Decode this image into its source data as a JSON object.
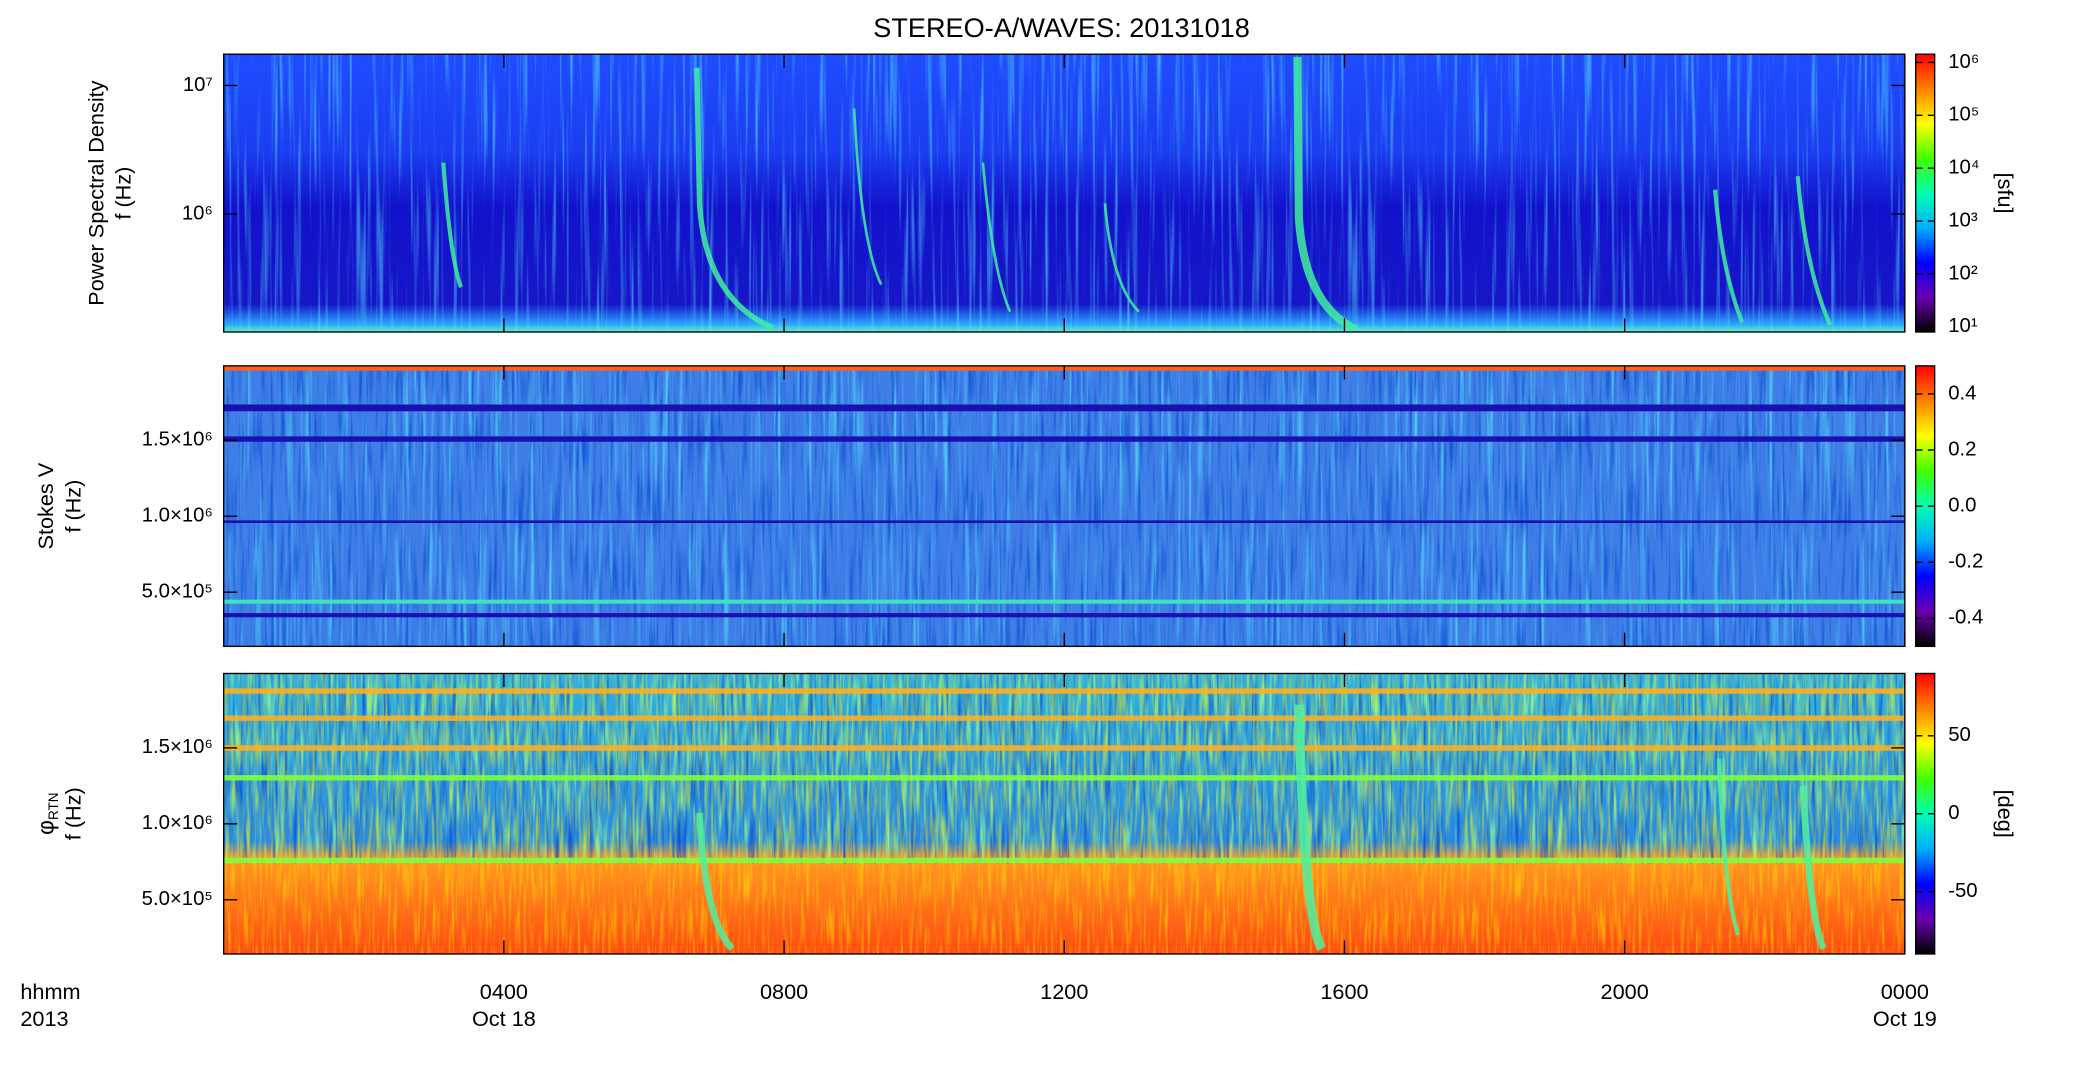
{
  "chart_data": [
    {
      "type": "spectrogram",
      "title": "STEREO-A/WAVES: 20131018",
      "ylabel": [
        "Power Spectral Density",
        "f (Hz)"
      ],
      "ylog": true,
      "ylim": [
        121000,
        17500000
      ],
      "yticks": [
        {
          "value": 1000000,
          "label": "10⁶"
        },
        {
          "value": 10000000,
          "label": "10⁷"
        }
      ],
      "colorbar_label": "[sfu]",
      "clog": true,
      "clim": [
        8,
        1430000
      ],
      "cticks": [
        {
          "value": 10,
          "label": "10¹"
        },
        {
          "value": 100,
          "label": "10²"
        },
        {
          "value": 1000,
          "label": "10³"
        },
        {
          "value": 10000,
          "label": "10⁴"
        },
        {
          "value": 100000,
          "label": "10⁵"
        },
        {
          "value": 1000000,
          "label": "10⁶"
        }
      ],
      "colormap": [
        "#000000",
        "#6a00b0",
        "#0000ff",
        "#00b0ff",
        "#00ffb0",
        "#40ff00",
        "#ffff00",
        "#ff8000",
        "#ff0000"
      ]
    },
    {
      "type": "spectrogram",
      "ylabel": [
        "Stokes V",
        "f (Hz)"
      ],
      "ylog": false,
      "ylim": [
        143000,
        1990000
      ],
      "yticks": [
        {
          "value": 500000,
          "label": "5.0×10⁵"
        },
        {
          "value": 1000000,
          "label": "1.0×10⁶"
        },
        {
          "value": 1500000,
          "label": "1.5×10⁶"
        }
      ],
      "clog": false,
      "clim": [
        -0.5,
        0.5
      ],
      "cticks": [
        -0.4,
        -0.2,
        {
          "value": 0,
          "label": "0.0"
        },
        0.2,
        0.4
      ],
      "colormap": [
        "#000000",
        "#6a00b0",
        "#0000ff",
        "#00b0ff",
        "#00ffb0",
        "#40ff00",
        "#ffff00",
        "#ff8000",
        "#ff0000"
      ]
    },
    {
      "type": "spectrogram",
      "ylabel_symbol": "φ",
      "ylabel_subscript": "RTN",
      "ylabel": [
        "f (Hz)"
      ],
      "ylog": false,
      "ylim": [
        143000,
        1990000
      ],
      "yticks": [
        {
          "value": 500000,
          "label": "5.0×10⁵"
        },
        {
          "value": 1000000,
          "label": "1.0×10⁶"
        },
        {
          "value": 1500000,
          "label": "1.5×10⁶"
        }
      ],
      "colorbar_label": "[deg]",
      "clog": false,
      "clim": [
        -90,
        90
      ],
      "cticks": [
        -50,
        0,
        50
      ],
      "colormap": [
        "#000000",
        "#6a00b0",
        "#0000ff",
        "#00b0ff",
        "#00ffb0",
        "#40ff00",
        "#ffff00",
        "#ff8000",
        "#ff0000"
      ],
      "xlim": [
        0,
        24
      ],
      "xticks": [
        {
          "value": 4,
          "label": "0400"
        },
        {
          "value": 8,
          "label": "0800"
        },
        {
          "value": 12,
          "label": "1200"
        },
        {
          "value": 16,
          "label": "1600"
        },
        {
          "value": 20,
          "label": "2000"
        },
        {
          "value": 24,
          "label": "0000"
        }
      ],
      "xtick_dates": [
        {
          "value": 4,
          "label": "Oct 18"
        },
        {
          "value": 24,
          "label": "Oct 19"
        }
      ],
      "x_axis_labels": [
        "hhmm",
        "2013"
      ]
    }
  ]
}
